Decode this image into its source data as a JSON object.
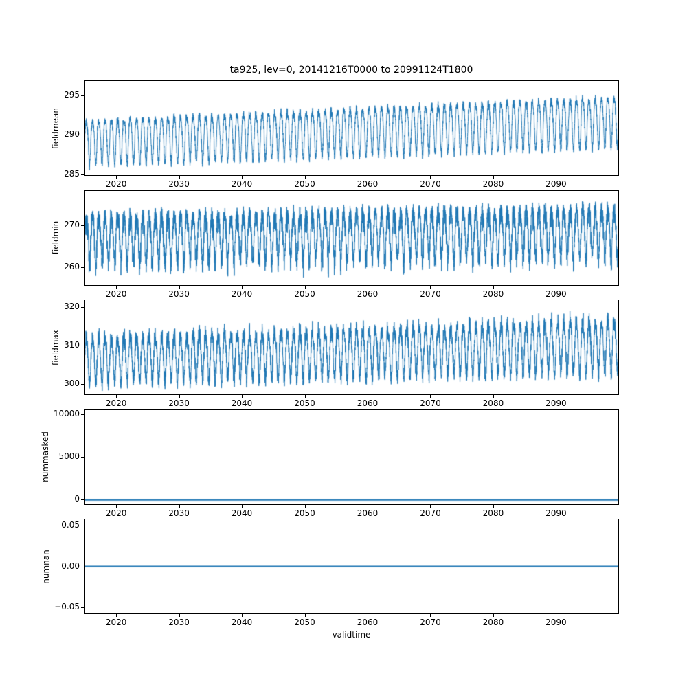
{
  "figure": {
    "title": "ta925, lev=0, 20141216T0000 to 20991124T1800",
    "xlabel": "validtime",
    "line_color": "#1f77b4",
    "background": "#ffffff"
  },
  "chart_data": [
    {
      "type": "line",
      "ylabel": "fieldmean",
      "x": {
        "start": 2014.96,
        "end": 2099.9
      },
      "xticks": [
        2020,
        2030,
        2040,
        2050,
        2060,
        2070,
        2080,
        2090
      ],
      "ylim": [
        284.9,
        296.8
      ],
      "yticks": [
        285,
        290,
        295
      ],
      "yticklabels": [
        "285",
        "290",
        "295"
      ],
      "series": {
        "name": "fieldmean",
        "model": "seasonal",
        "points": 5000,
        "seed": 7,
        "baseline_start": 289.35,
        "baseline_end": 291.95,
        "amplitude_start": 2.7,
        "amplitude_end": 3.1,
        "harmonic2": 0.5,
        "noise_sd": 0.35,
        "skew": "none",
        "skew_factor": 1,
        "description": "dense annual cycle oscillating roughly 286-293 in 2015 rising to roughly 289-296 by 2099"
      }
    },
    {
      "type": "line",
      "ylabel": "fieldmin",
      "x": {
        "start": 2014.96,
        "end": 2099.9
      },
      "xticks": [
        2020,
        2030,
        2040,
        2050,
        2060,
        2070,
        2080,
        2090
      ],
      "ylim": [
        255.9,
        278.3
      ],
      "yticks": [
        260,
        270
      ],
      "yticklabels": [
        "260",
        "270"
      ],
      "series": {
        "name": "fieldmin",
        "model": "seasonal",
        "points": 5000,
        "seed": 13,
        "baseline_start": 267.8,
        "baseline_end": 269.3,
        "amplitude_start": 5.2,
        "amplitude_end": 5.6,
        "harmonic2": 1.0,
        "noise_sd": 1.2,
        "skew": "low",
        "skew_factor": 2.0,
        "description": "noisy annual cycle roughly 258-277 with downward spikes, slight upward trend through 2099"
      }
    },
    {
      "type": "line",
      "ylabel": "fieldmax",
      "x": {
        "start": 2014.96,
        "end": 2099.9
      },
      "xticks": [
        2020,
        2030,
        2040,
        2050,
        2060,
        2070,
        2080,
        2090
      ],
      "ylim": [
        297.4,
        321.8
      ],
      "yticks": [
        300,
        310,
        320
      ],
      "yticklabels": [
        "300",
        "310",
        "320"
      ],
      "series": {
        "name": "fieldmax",
        "model": "seasonal",
        "points": 5000,
        "seed": 21,
        "baseline_start": 306.3,
        "baseline_end": 310.0,
        "amplitude_start": 5.6,
        "amplitude_end": 6.4,
        "harmonic2": 0.8,
        "noise_sd": 1.1,
        "skew": "high",
        "skew_factor": 1.8,
        "description": "annual cycle with peaks near 315 in 2015 rising to near 321 by 2099, troughs near 300-303"
      }
    },
    {
      "type": "line",
      "ylabel": "nummasked",
      "x": {
        "start": 2014.96,
        "end": 2099.9
      },
      "xticks": [
        2020,
        2030,
        2040,
        2050,
        2060,
        2070,
        2080,
        2090
      ],
      "ylim": [
        -500,
        10500
      ],
      "yticks": [
        0,
        5000,
        10000
      ],
      "yticklabels": [
        "0",
        "5000",
        "10000"
      ],
      "series": {
        "name": "nummasked",
        "model": "constant",
        "value": 0,
        "description": "constant zero for the whole period"
      }
    },
    {
      "type": "line",
      "ylabel": "numnan",
      "x": {
        "start": 2014.96,
        "end": 2099.9
      },
      "xticks": [
        2020,
        2030,
        2040,
        2050,
        2060,
        2070,
        2080,
        2090
      ],
      "ylim": [
        -0.0575,
        0.0575
      ],
      "yticks": [
        -0.05,
        0.0,
        0.05
      ],
      "yticklabels": [
        "−0.05",
        "0.00",
        "0.05"
      ],
      "series": {
        "name": "numnan",
        "model": "constant",
        "value": 0,
        "description": "constant zero for the whole period"
      }
    }
  ]
}
